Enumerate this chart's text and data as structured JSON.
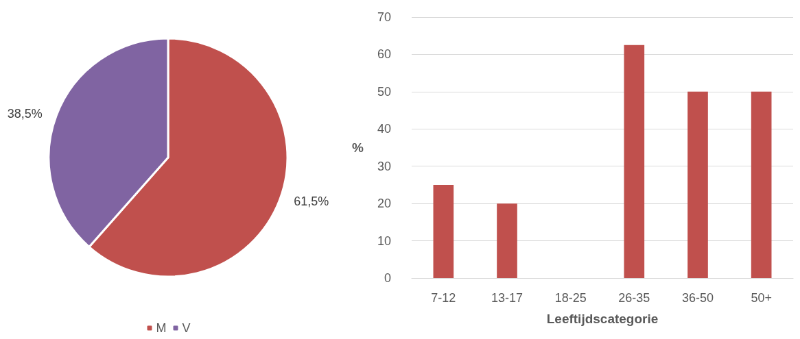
{
  "chart_data": [
    {
      "type": "pie",
      "categories": [
        "M",
        "V"
      ],
      "values": [
        61.5,
        38.5
      ],
      "colors": [
        "#c0504d",
        "#8064a2"
      ],
      "value_labels": [
        "61,5%",
        "38,5%"
      ],
      "legend": "bottom"
    },
    {
      "type": "bar",
      "categories": [
        "7-12",
        "13-17",
        "18-25",
        "26-35",
        "36-50",
        "50+"
      ],
      "values": [
        25,
        20,
        0,
        62.5,
        50,
        50
      ],
      "color": "#c0504d",
      "ylabel": "%",
      "xlabel": "Leeftijdscategorie",
      "ylim": [
        0,
        70
      ],
      "yticks": [
        0,
        10,
        20,
        30,
        40,
        50,
        60,
        70
      ],
      "grid": "y",
      "legend": false
    }
  ]
}
